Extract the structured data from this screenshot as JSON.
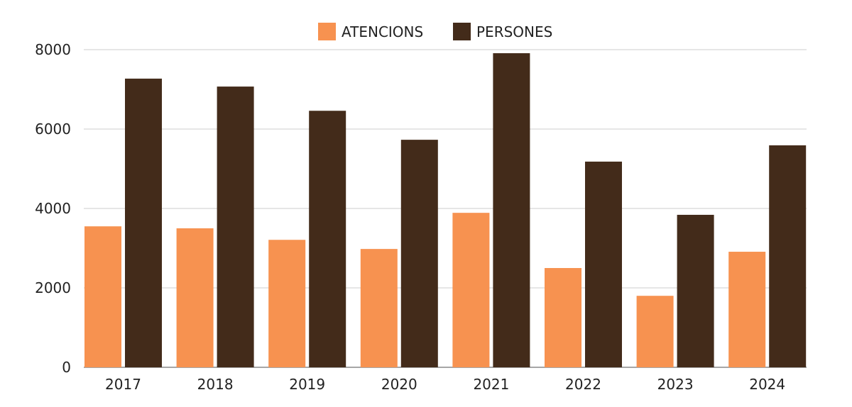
{
  "chart_data": {
    "type": "bar",
    "title": "",
    "xlabel": "",
    "ylabel": "",
    "categories": [
      "2017",
      "2018",
      "2019",
      "2020",
      "2021",
      "2022",
      "2023",
      "2024"
    ],
    "series": [
      {
        "name": "ATENCIONS",
        "color": "#F79250",
        "values": [
          3550,
          3500,
          3210,
          2980,
          3890,
          2500,
          1800,
          2910
        ]
      },
      {
        "name": "PERSONES",
        "color": "#432B1A",
        "values": [
          7270,
          7070,
          6460,
          5730,
          7910,
          5180,
          3840,
          5590
        ]
      }
    ],
    "ylim": [
      0,
      8000
    ],
    "yticks": [
      "0",
      "2000",
      "4000",
      "6000",
      "8000"
    ],
    "grid": true,
    "legend": "top-center"
  }
}
